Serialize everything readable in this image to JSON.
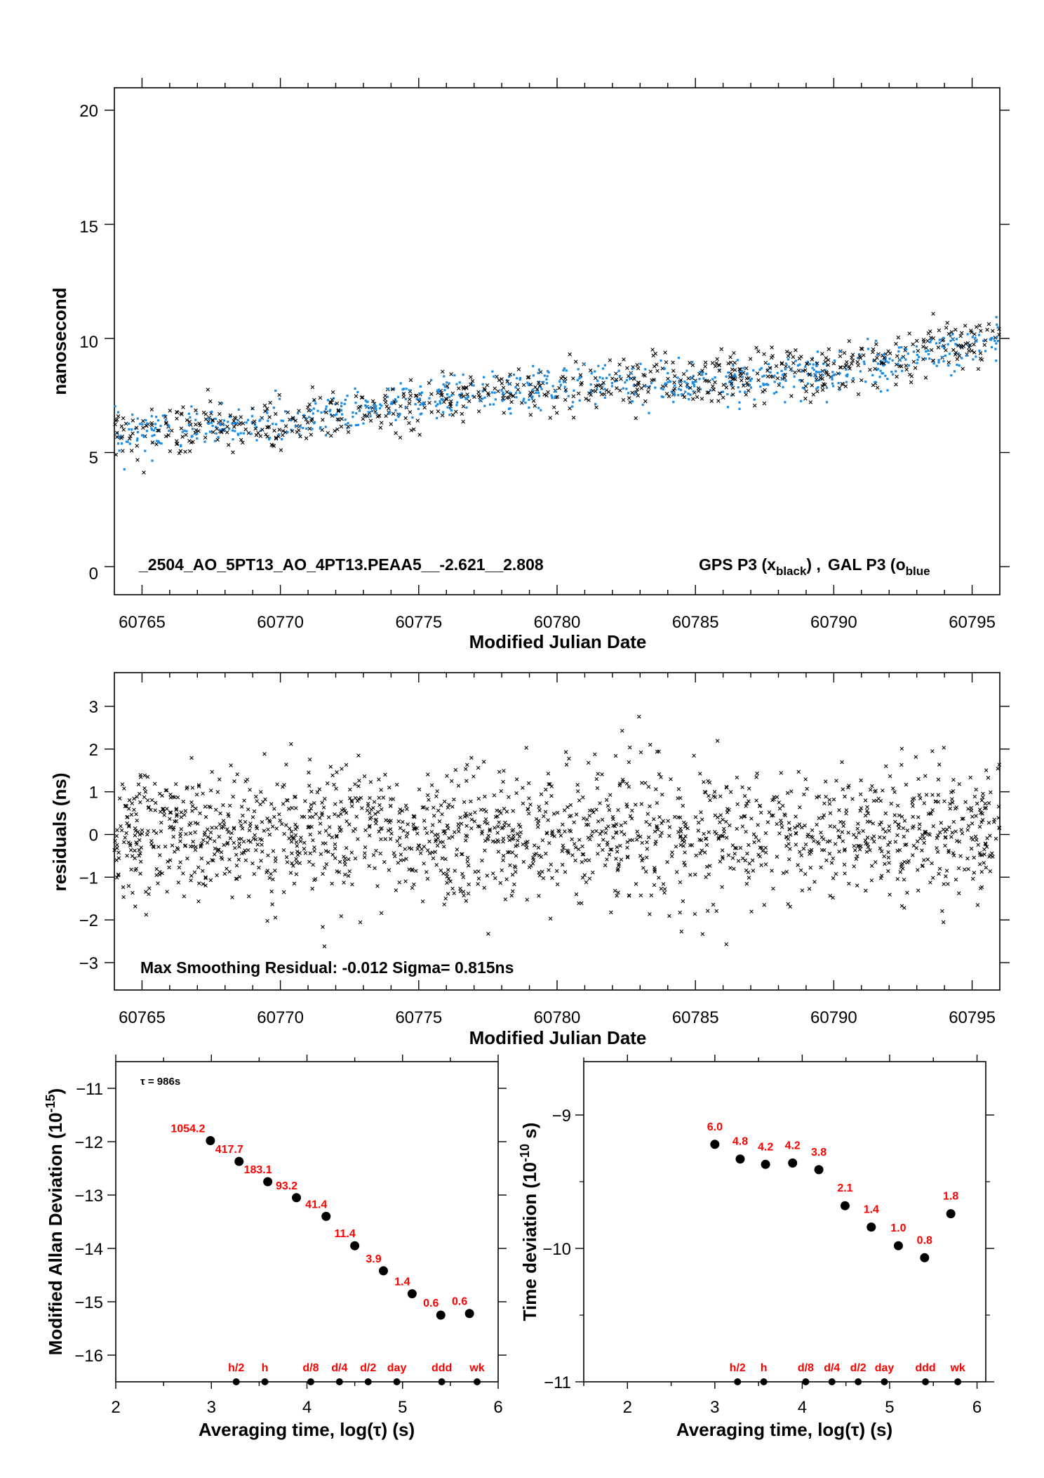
{
  "colors": {
    "black_series": "#000000",
    "blue_series": "#1a8ce6",
    "label_red": "#ff0000"
  },
  "chart_data": [
    {
      "type": "scatter",
      "xlabel": "Modified Julian Date",
      "ylabel": "nanosecond",
      "xlim": [
        60764,
        60796
      ],
      "ylim": [
        -1,
        21
      ],
      "xticks": [
        "60765",
        "60770",
        "60775",
        "60780",
        "60785",
        "60790",
        "60795"
      ],
      "yticks": [
        "0",
        "5",
        "10",
        "15",
        "20"
      ],
      "annotation": "_2504_AO_5PT13_AO_4PT13.PEAA5__-2.621__2.808",
      "legend": {
        "gps": "GPS P3 (x",
        "gps_sub": "black",
        "sep": ") ,",
        "gal": "GAL P3 (o",
        "gal_sub": "blue"
      },
      "series": [
        {
          "name": "GPS P3",
          "marker": "x",
          "color": "#000000",
          "trend": [
            [
              60764,
              5.9
            ],
            [
              60770,
              6.2
            ],
            [
              60775,
              7.1
            ],
            [
              60780,
              7.9
            ],
            [
              60785,
              8.2
            ],
            [
              60790,
              8.6
            ],
            [
              60796,
              10.1
            ]
          ],
          "noise_sd": 0.55
        },
        {
          "name": "GAL P3",
          "marker": "o",
          "color": "#1a8ce6",
          "trend": [
            [
              60764,
              5.8
            ],
            [
              60770,
              6.3
            ],
            [
              60775,
              7.2
            ],
            [
              60780,
              7.9
            ],
            [
              60785,
              8.1
            ],
            [
              60790,
              8.4
            ],
            [
              60796,
              10.0
            ]
          ],
          "noise_sd": 0.45
        }
      ]
    },
    {
      "type": "scatter",
      "xlabel": "Modified Julian Date",
      "ylabel": "residuals (ns)",
      "xlim": [
        60764,
        60796
      ],
      "ylim": [
        -3.6,
        3.8
      ],
      "xticks": [
        "60765",
        "60770",
        "60775",
        "60780",
        "60785",
        "60790",
        "60795"
      ],
      "yticks": [
        "3",
        "2",
        "1",
        "0",
        "−1",
        "−2",
        "−3"
      ],
      "annotation": "Max Smoothing Residual: -0.012  Sigma= 0.815ns",
      "series": [
        {
          "marker": "x",
          "color": "#000000",
          "mean": 0,
          "sigma": 0.815
        }
      ]
    },
    {
      "type": "scatter",
      "xlabel": "Averaging time, log(τ) (s)",
      "ylabel": "Modified Allan Deviation (10",
      "ylabel_sup": "-15",
      "ylabel_end": ")",
      "tau_note": "τ = 986s",
      "xlim": [
        2,
        6
      ],
      "ylim": [
        -16.5,
        -10.5
      ],
      "xticks": [
        "2",
        "3",
        "4",
        "5",
        "6"
      ],
      "yticks": [
        "−11",
        "−12",
        "−13",
        "−14",
        "−15",
        "−16"
      ],
      "x": [
        2.99,
        3.29,
        3.59,
        3.89,
        4.2,
        4.5,
        4.8,
        5.1,
        5.4,
        5.7
      ],
      "y": [
        -11.98,
        -12.37,
        -12.75,
        -13.05,
        -13.4,
        -13.95,
        -14.42,
        -14.85,
        -15.25,
        -15.22
      ],
      "labels": [
        "1054.2",
        "417.7",
        "183.1",
        "93.2",
        "41.4",
        "11.4",
        "3.9",
        "1.4",
        "0.6",
        "0.6"
      ],
      "markers": [
        {
          "label": "h/2",
          "x": 3.26
        },
        {
          "label": "h",
          "x": 3.56
        },
        {
          "label": "d/8",
          "x": 4.04
        },
        {
          "label": "d/4",
          "x": 4.34
        },
        {
          "label": "d/2",
          "x": 4.64
        },
        {
          "label": "day",
          "x": 4.94
        },
        {
          "label": "ddd",
          "x": 5.41
        },
        {
          "label": "wk",
          "x": 5.78
        }
      ]
    },
    {
      "type": "scatter",
      "xlabel": "Averaging time, log(τ) (s)",
      "ylabel": "Time deviation (10",
      "ylabel_sup": "-10",
      "ylabel_end": " s)",
      "xlim": [
        1.5,
        6.1
      ],
      "ylim": [
        -11,
        -8.6
      ],
      "xticks": [
        "2",
        "3",
        "4",
        "5",
        "6"
      ],
      "yticks": [
        "−9",
        "−10",
        "−11"
      ],
      "x": [
        3.0,
        3.29,
        3.58,
        3.89,
        4.19,
        4.49,
        4.79,
        5.1,
        5.4,
        5.7
      ],
      "y": [
        -9.22,
        -9.33,
        -9.37,
        -9.36,
        -9.41,
        -9.68,
        -9.84,
        -9.98,
        -10.07,
        -9.74
      ],
      "labels": [
        "6.0",
        "4.8",
        "4.2",
        "4.2",
        "3.8",
        "2.1",
        "1.4",
        "1.0",
        "0.8",
        "1.8"
      ],
      "markers": [
        {
          "label": "h/2",
          "x": 3.26
        },
        {
          "label": "h",
          "x": 3.56
        },
        {
          "label": "d/8",
          "x": 4.04
        },
        {
          "label": "d/4",
          "x": 4.34
        },
        {
          "label": "d/2",
          "x": 4.64
        },
        {
          "label": "day",
          "x": 4.94
        },
        {
          "label": "ddd",
          "x": 5.41
        },
        {
          "label": "wk",
          "x": 5.78
        }
      ]
    }
  ]
}
